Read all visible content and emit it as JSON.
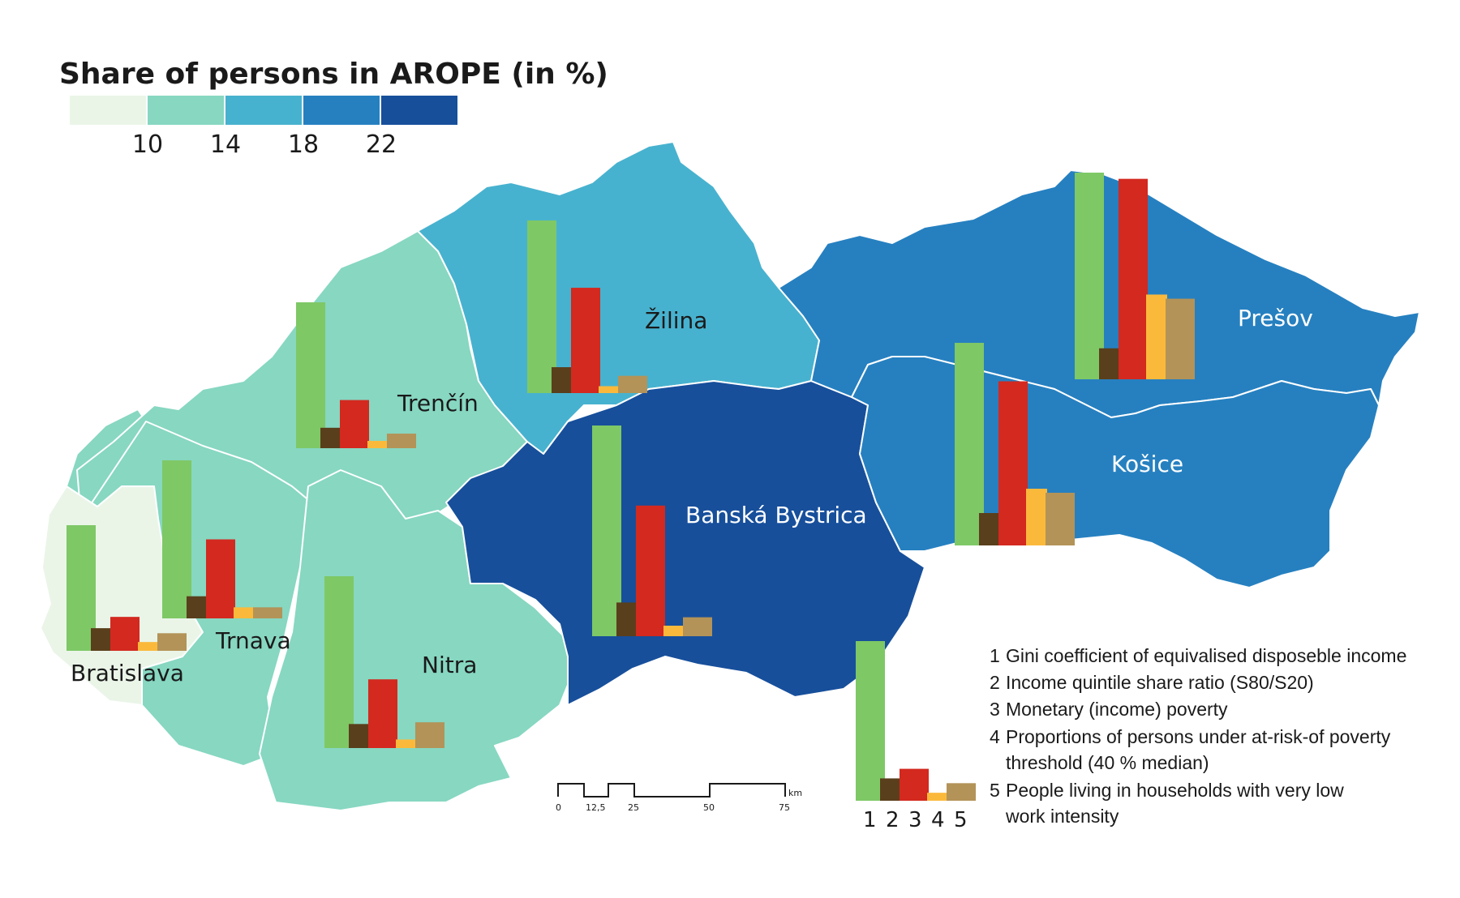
{
  "colors": {
    "class_1": "#eaf5e8",
    "class_2": "#87d7c1",
    "class_3": "#47b2cf",
    "class_4": "#2680c0",
    "class_5": "#174f9b",
    "bar_1": "#7ec866",
    "bar_2": "#5a3f1c",
    "bar_3": "#d3291f",
    "bar_4": "#fbb93c",
    "bar_5": "#b39358"
  },
  "legend": {
    "title": "Share of persons in AROPE (in %)",
    "ticks": [
      "10",
      "14",
      "18",
      "22"
    ]
  },
  "regions": [
    {
      "name": "Bratislava",
      "class": 1,
      "bars": [
        1.0,
        0.18,
        0.27,
        0.07,
        0.14
      ]
    },
    {
      "name": "Trnava",
      "class": 2,
      "bars": [
        1.0,
        0.14,
        0.5,
        0.07,
        0.07
      ]
    },
    {
      "name": "Trenčín",
      "class": 2,
      "bars": [
        1.0,
        0.14,
        0.33,
        0.05,
        0.1
      ]
    },
    {
      "name": "Nitra",
      "class": 2,
      "bars": [
        1.0,
        0.14,
        0.4,
        0.05,
        0.15
      ]
    },
    {
      "name": "Žilina",
      "class": 3,
      "bars": [
        1.0,
        0.15,
        0.61,
        0.04,
        0.1
      ]
    },
    {
      "name": "Banská Bystrica",
      "class": 5,
      "bars": [
        1.0,
        0.16,
        0.62,
        0.05,
        0.09
      ]
    },
    {
      "name": "Prešov",
      "class": 4,
      "bars": [
        1.0,
        0.15,
        0.97,
        0.41,
        0.39
      ]
    },
    {
      "name": "Košice",
      "class": 4,
      "bars": [
        1.0,
        0.16,
        0.81,
        0.28,
        0.26
      ]
    }
  ],
  "bar_legend": {
    "numbers": [
      "1",
      "2",
      "3",
      "4",
      "5"
    ],
    "example_bars": [
      1.0,
      0.14,
      0.2,
      0.05,
      0.11
    ],
    "items": [
      {
        "num": "1",
        "lines": [
          "Gini coefficient of equivalised disposeble income"
        ]
      },
      {
        "num": "2",
        "lines": [
          "Income quintile share ratio (S80/S20)"
        ]
      },
      {
        "num": "3",
        "lines": [
          "Monetary (income) poverty"
        ]
      },
      {
        "num": "4",
        "lines": [
          "Proportions of persons under at-risk-of poverty",
          "threshold (40 % median)"
        ]
      },
      {
        "num": "5",
        "lines": [
          "People living in households with very low",
          "work intensity"
        ]
      }
    ]
  },
  "scale_bar": {
    "labels": [
      "0",
      "12,5",
      "25",
      "50",
      "75"
    ],
    "unit": "km"
  }
}
